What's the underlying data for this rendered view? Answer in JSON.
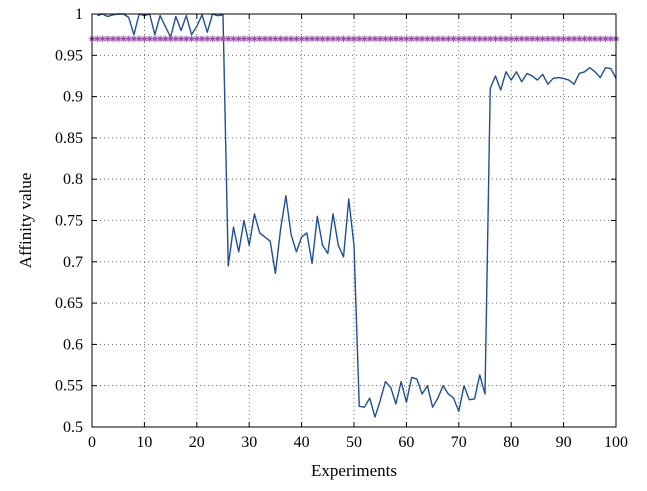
{
  "chart_data": {
    "type": "line",
    "title": "",
    "xlabel": "Experiments",
    "ylabel": "Affinity value",
    "xlim": [
      0,
      100
    ],
    "ylim": [
      0.5,
      1.0
    ],
    "xticks": [
      0,
      10,
      20,
      30,
      40,
      50,
      60,
      70,
      80,
      90,
      100
    ],
    "yticks": [
      0.5,
      0.55,
      0.6,
      0.65,
      0.7,
      0.75,
      0.8,
      0.85,
      0.9,
      0.95,
      1.0
    ],
    "xtick_labels": [
      "0",
      "10",
      "20",
      "30",
      "40",
      "50",
      "60",
      "70",
      "80",
      "90",
      "100"
    ],
    "ytick_labels": [
      "0.5",
      "0.55",
      "0.6",
      "0.65",
      "0.7",
      "0.75",
      "0.8",
      "0.85",
      "0.9",
      "0.95",
      "1"
    ],
    "grid": true,
    "colors": {
      "series_line": "#1f4e9c",
      "threshold": "#9b4fb0"
    },
    "series": [
      {
        "style": "line",
        "x": [
          1,
          2,
          3,
          4,
          5,
          6,
          7,
          8,
          9,
          10,
          11,
          12,
          13,
          14,
          15,
          16,
          17,
          18,
          19,
          20,
          21,
          22,
          23,
          24,
          25,
          26,
          27,
          28,
          29,
          30,
          31,
          32,
          33,
          34,
          35,
          36,
          37,
          38,
          39,
          40,
          41,
          42,
          43,
          44,
          45,
          46,
          47,
          48,
          49,
          50,
          51,
          52,
          53,
          54,
          55,
          56,
          57,
          58,
          59,
          60,
          61,
          62,
          63,
          64,
          65,
          66,
          67,
          68,
          69,
          70,
          71,
          72,
          73,
          74,
          75,
          76,
          77,
          78,
          79,
          80,
          81,
          82,
          83,
          84,
          85,
          86,
          87,
          88,
          89,
          90,
          91,
          92,
          93,
          94,
          95,
          96,
          97,
          98,
          99,
          100
        ],
        "y": [
          0.998,
          1.0,
          0.997,
          0.999,
          1.0,
          1.0,
          0.996,
          0.975,
          1.0,
          0.998,
          1.0,
          0.975,
          0.998,
          0.985,
          0.972,
          0.997,
          0.98,
          0.998,
          0.975,
          0.985,
          0.999,
          0.978,
          1.0,
          0.998,
          0.999,
          0.695,
          0.742,
          0.712,
          0.75,
          0.72,
          0.758,
          0.735,
          0.73,
          0.725,
          0.686,
          0.74,
          0.78,
          0.733,
          0.712,
          0.73,
          0.735,
          0.698,
          0.755,
          0.72,
          0.71,
          0.758,
          0.72,
          0.706,
          0.776,
          0.72,
          0.525,
          0.524,
          0.535,
          0.512,
          0.532,
          0.555,
          0.548,
          0.528,
          0.555,
          0.53,
          0.56,
          0.558,
          0.54,
          0.55,
          0.524,
          0.535,
          0.55,
          0.54,
          0.535,
          0.519,
          0.55,
          0.533,
          0.534,
          0.563,
          0.54,
          0.91,
          0.925,
          0.908,
          0.93,
          0.92,
          0.93,
          0.918,
          0.928,
          0.925,
          0.92,
          0.927,
          0.915,
          0.922,
          0.923,
          0.922,
          0.92,
          0.915,
          0.928,
          0.93,
          0.935,
          0.93,
          0.923,
          0.935,
          0.934,
          0.922
        ]
      },
      {
        "style": "markers",
        "marker": "asterisk",
        "x": [
          0,
          1,
          2,
          3,
          4,
          5,
          6,
          7,
          8,
          9,
          10,
          11,
          12,
          13,
          14,
          15,
          16,
          17,
          18,
          19,
          20,
          21,
          22,
          23,
          24,
          25,
          26,
          27,
          28,
          29,
          30,
          31,
          32,
          33,
          34,
          35,
          36,
          37,
          38,
          39,
          40,
          41,
          42,
          43,
          44,
          45,
          46,
          47,
          48,
          49,
          50,
          51,
          52,
          53,
          54,
          55,
          56,
          57,
          58,
          59,
          60,
          61,
          62,
          63,
          64,
          65,
          66,
          67,
          68,
          69,
          70,
          71,
          72,
          73,
          74,
          75,
          76,
          77,
          78,
          79,
          80,
          81,
          82,
          83,
          84,
          85,
          86,
          87,
          88,
          89,
          90,
          91,
          92,
          93,
          94,
          95,
          96,
          97,
          98,
          99,
          100
        ],
        "y_constant": 0.97
      }
    ]
  }
}
